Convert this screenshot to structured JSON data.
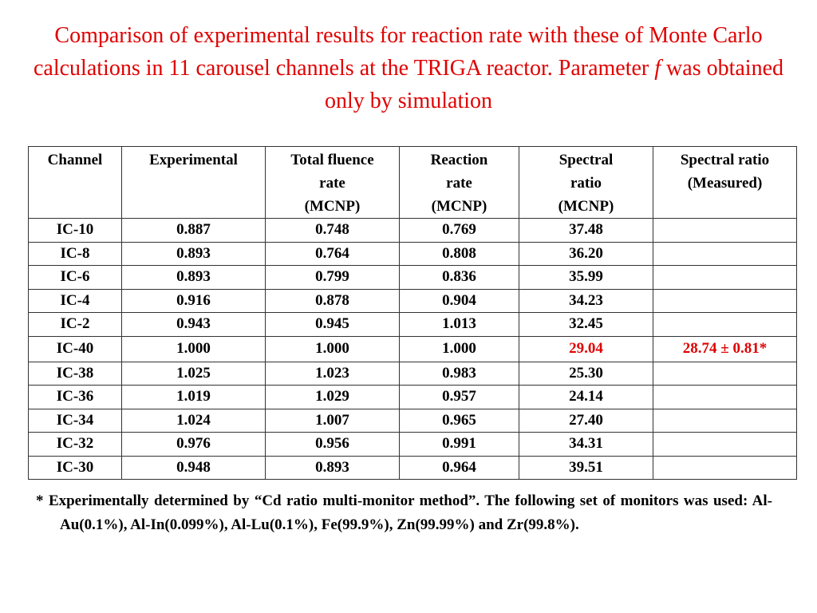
{
  "title": {
    "before": "Comparison of experimental results for reaction rate with these of Monte Carlo calculations in 11 carousel channels at the TRIGA reactor. Parameter ",
    "italic": "f",
    "after": " was obtained only by simulation"
  },
  "table": {
    "headers": [
      [
        "Channel"
      ],
      [
        "Experimental"
      ],
      [
        "Total fluence",
        "rate",
        "(MCNP)"
      ],
      [
        "Reaction",
        "rate",
        "(MCNP)"
      ],
      [
        "Spectral",
        "ratio",
        "(MCNP)"
      ],
      [
        "Spectral ratio",
        "(Measured)"
      ]
    ],
    "rows": [
      [
        "IC-10",
        "0.887",
        "0.748",
        "0.769",
        "37.48"
      ],
      [
        "IC-8",
        "0.893",
        "0.764",
        "0.808",
        "36.20"
      ],
      [
        "IC-6",
        "0.893",
        "0.799",
        "0.836",
        "35.99"
      ],
      [
        "IC-4",
        "0.916",
        "0.878",
        "0.904",
        "34.23"
      ],
      [
        "IC-2",
        "0.943",
        "0.945",
        "1.013",
        "32.45"
      ],
      [
        "IC-40",
        "1.000",
        "1.000",
        "1.000",
        "29.04"
      ],
      [
        "IC-38",
        "1.025",
        "1.023",
        "0.983",
        "25.30"
      ],
      [
        "IC-36",
        "1.019",
        "1.029",
        "0.957",
        "24.14"
      ],
      [
        "IC-34",
        "1.024",
        "1.007",
        "0.965",
        "27.40"
      ],
      [
        "IC-32",
        "0.976",
        "0.956",
        "0.991",
        "34.31"
      ],
      [
        "IC-30",
        "0.948",
        "0.893",
        "0.964",
        "39.51"
      ]
    ],
    "measured": {
      "row": 5,
      "text": "28.74 ± 0.81*"
    }
  },
  "footnote": "* Experimentally determined by “Cd ratio multi-monitor method”. The following set of monitors was used: Al-Au(0.1%), Al-In(0.099%), Al-Lu(0.1%), Fe(99.9%), Zn(99.99%) and Zr(99.8%)."
}
